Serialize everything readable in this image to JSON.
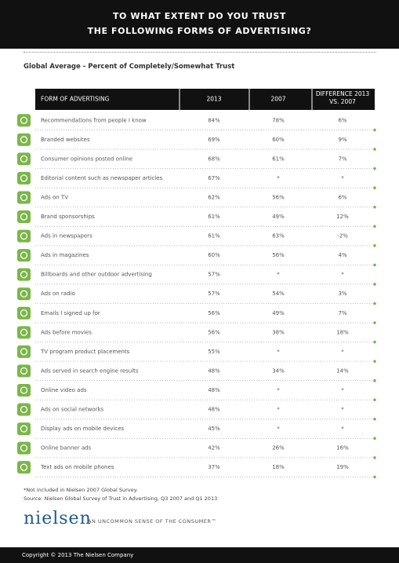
{
  "header": {
    "title_line1": "TO WHAT EXTENT DO YOU TRUST",
    "title_line2": "THE FOLLOWING FORMS OF ADVERTISING?"
  },
  "subtitle": "Global Average - Percent of Completely/Somewhat Trust",
  "table": {
    "columns": [
      "FORM OF ADVERTISING",
      "2013",
      "2007",
      "DIFFERENCE 2013 VS. 2007"
    ],
    "rows": [
      [
        "Recommendations from people I know",
        "84%",
        "78%",
        "6%"
      ],
      [
        "Branded websites",
        "69%",
        "60%",
        "9%"
      ],
      [
        "Consumer opinions posted online",
        "68%",
        "61%",
        "7%"
      ],
      [
        "Editorial content such as newspaper articles",
        "67%",
        "*",
        "*"
      ],
      [
        "Ads on TV",
        "62%",
        "56%",
        "6%"
      ],
      [
        "Brand sponsorships",
        "61%",
        "49%",
        "12%"
      ],
      [
        "Ads in newspapers",
        "61%",
        "63%",
        "-2%"
      ],
      [
        "Ads in magazines",
        "60%",
        "56%",
        "4%"
      ],
      [
        "Billboards and other outdoor advertising",
        "57%",
        "*",
        "*"
      ],
      [
        "Ads on radio",
        "57%",
        "54%",
        "3%"
      ],
      [
        "Emails I signed up for",
        "56%",
        "49%",
        "7%"
      ],
      [
        "Ads before movies",
        "56%",
        "38%",
        "18%"
      ],
      [
        "TV program product placements",
        "55%",
        "*",
        "*"
      ],
      [
        "Ads served in search engine results",
        "48%",
        "34%",
        "14%"
      ],
      [
        "Online video ads",
        "48%",
        "*",
        "*"
      ],
      [
        "Ads on social networks",
        "48%",
        "*",
        "*"
      ],
      [
        "Display ads on mobile devices",
        "45%",
        "*",
        "*"
      ],
      [
        "Online banner ads",
        "42%",
        "26%",
        "16%"
      ],
      [
        "Text ads on mobile phones",
        "37%",
        "18%",
        "19%"
      ]
    ]
  },
  "footnotes": [
    "*Not included in Nielsen 2007 Global Survey.",
    "Source: Nielsen Global Survey of Trust in Advertising, Q3 2007 and Q1 2013"
  ],
  "brand": {
    "logo": "nielsen",
    "tagline": "AN UNCOMMON SENSE OF THE CONSUMER™"
  },
  "copyright": "Copyright © 2013 The Nielsen Company"
}
